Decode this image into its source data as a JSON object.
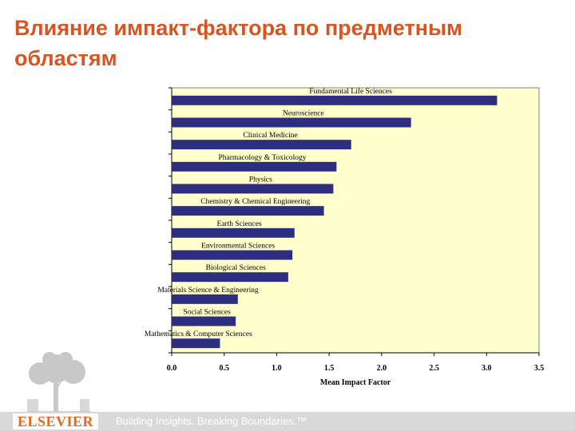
{
  "slide": {
    "title": "Влияние импакт-фактора по предметным областям"
  },
  "chart_data": {
    "type": "bar",
    "orientation": "horizontal",
    "categories": [
      "Fundamental Life Sciences",
      "Neuroscience",
      "Clinical Medicine",
      "Pharmacology & Toxicology",
      "Physics",
      "Chemistry & Chemical Engineering",
      "Earth Sciences",
      "Environmental Sciences",
      "Biological Sciences",
      "Materials Science & Engineering",
      "Social Sciences",
      "Mathematics & Computer Sciences"
    ],
    "values": [
      3.1,
      2.28,
      1.71,
      1.57,
      1.54,
      1.45,
      1.17,
      1.15,
      1.11,
      0.63,
      0.61,
      0.46
    ],
    "xlabel": "Mean Impact Factor",
    "ylabel": "",
    "xlim": [
      0,
      3.5
    ],
    "xticks": [
      "0.0",
      "0.5",
      "1.0",
      "1.5",
      "2.0",
      "2.5",
      "3.0",
      "3.5"
    ],
    "grid": false,
    "legend": "none",
    "colors": {
      "bar": "#2e2e80",
      "plot_background": "#ffffcc"
    }
  },
  "footer": {
    "logo": "ELSEVIER",
    "tagline": "Building Insights. Breaking Boundaries.™"
  }
}
